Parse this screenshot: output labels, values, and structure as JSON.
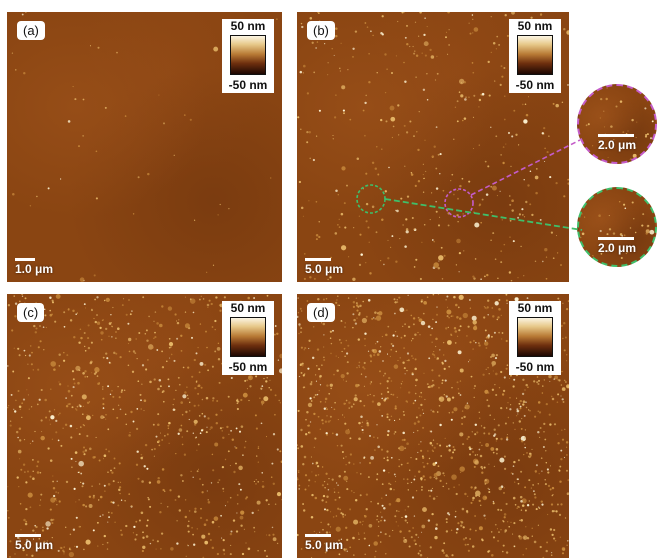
{
  "panels": {
    "a": {
      "label": "(a)",
      "scale": "1.0 μm",
      "colorbar": {
        "max": "50 nm",
        "min": "-50 nm"
      }
    },
    "b": {
      "label": "(b)",
      "scale": "5.0 μm",
      "colorbar": {
        "max": "50 nm",
        "min": "-50 nm"
      }
    },
    "c": {
      "label": "(c)",
      "scale": "5.0 μm",
      "colorbar": {
        "max": "50 nm",
        "min": "-50 nm"
      }
    },
    "d": {
      "label": "(d)",
      "scale": "5.0 μm",
      "colorbar": {
        "max": "50 nm",
        "min": "-50 nm"
      }
    }
  },
  "insets": {
    "magenta": {
      "scale": "2.0 μm"
    },
    "green": {
      "scale": "2.0 μm"
    }
  },
  "colors": {
    "substrate": "#8a4512",
    "highlight": "#fff2c0",
    "magenta_circle": "#c45cc9",
    "green_circle": "#3fbf6a"
  }
}
